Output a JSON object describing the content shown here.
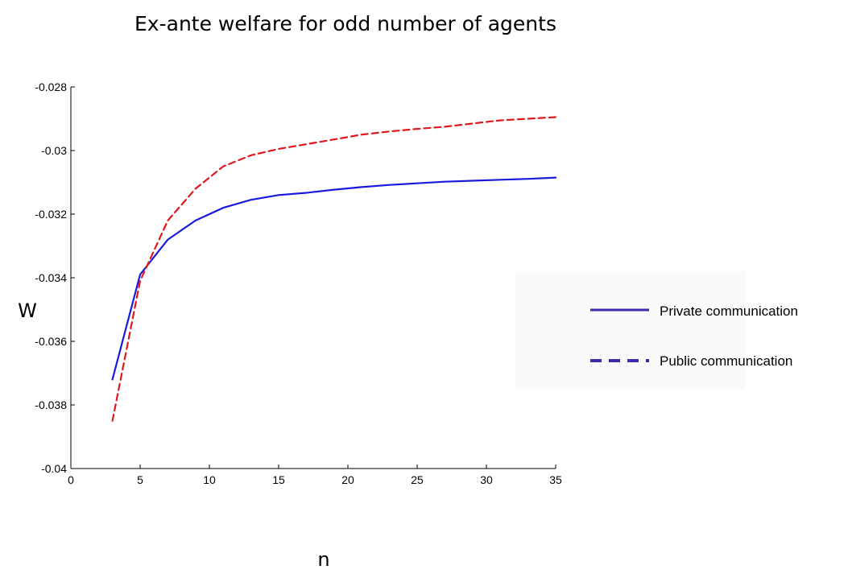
{
  "chart_data": {
    "type": "line",
    "title": "Ex-ante welfare for odd number of agents",
    "xlabel": "n",
    "ylabel": "W",
    "xlim": [
      0,
      35
    ],
    "ylim": [
      -0.04,
      -0.028
    ],
    "x_ticks": [
      0,
      5,
      10,
      15,
      20,
      25,
      30,
      35
    ],
    "y_ticks": [
      -0.04,
      -0.038,
      -0.036,
      -0.034,
      -0.032,
      -0.03,
      -0.028
    ],
    "x_tick_labels": [
      "0",
      "5",
      "10",
      "15",
      "20",
      "25",
      "30",
      "35"
    ],
    "y_tick_labels": [
      "-0.04",
      "-0.038",
      "-0.036",
      "-0.034",
      "-0.032",
      "-0.03",
      "-0.028"
    ],
    "grid": false,
    "legend_position": "right",
    "series": [
      {
        "name": "Private communication",
        "style": "solid",
        "color": "#1a1adc",
        "legend_color": "#3a2bb0",
        "x": [
          3,
          5,
          7,
          9,
          11,
          13,
          15,
          17,
          19,
          21,
          23,
          25,
          27,
          29,
          31,
          33,
          35
        ],
        "y": [
          -0.0372,
          -0.0339,
          -0.0328,
          -0.0322,
          -0.0318,
          -0.03155,
          -0.0314,
          -0.03133,
          -0.03123,
          -0.03115,
          -0.03108,
          -0.03103,
          -0.03098,
          -0.03095,
          -0.03092,
          -0.03089,
          -0.03085
        ]
      },
      {
        "name": "Public communication",
        "style": "dashed",
        "color": "#e0181c",
        "legend_color": "#3a2bb0",
        "x": [
          3,
          5,
          7,
          9,
          11,
          13,
          15,
          17,
          19,
          21,
          23,
          25,
          27,
          29,
          31,
          33,
          35
        ],
        "y": [
          -0.0385,
          -0.0341,
          -0.0322,
          -0.0312,
          -0.0305,
          -0.03015,
          -0.02995,
          -0.0298,
          -0.02965,
          -0.0295,
          -0.0294,
          -0.02932,
          -0.02925,
          -0.02915,
          -0.02905,
          -0.029,
          -0.02895
        ]
      }
    ]
  }
}
